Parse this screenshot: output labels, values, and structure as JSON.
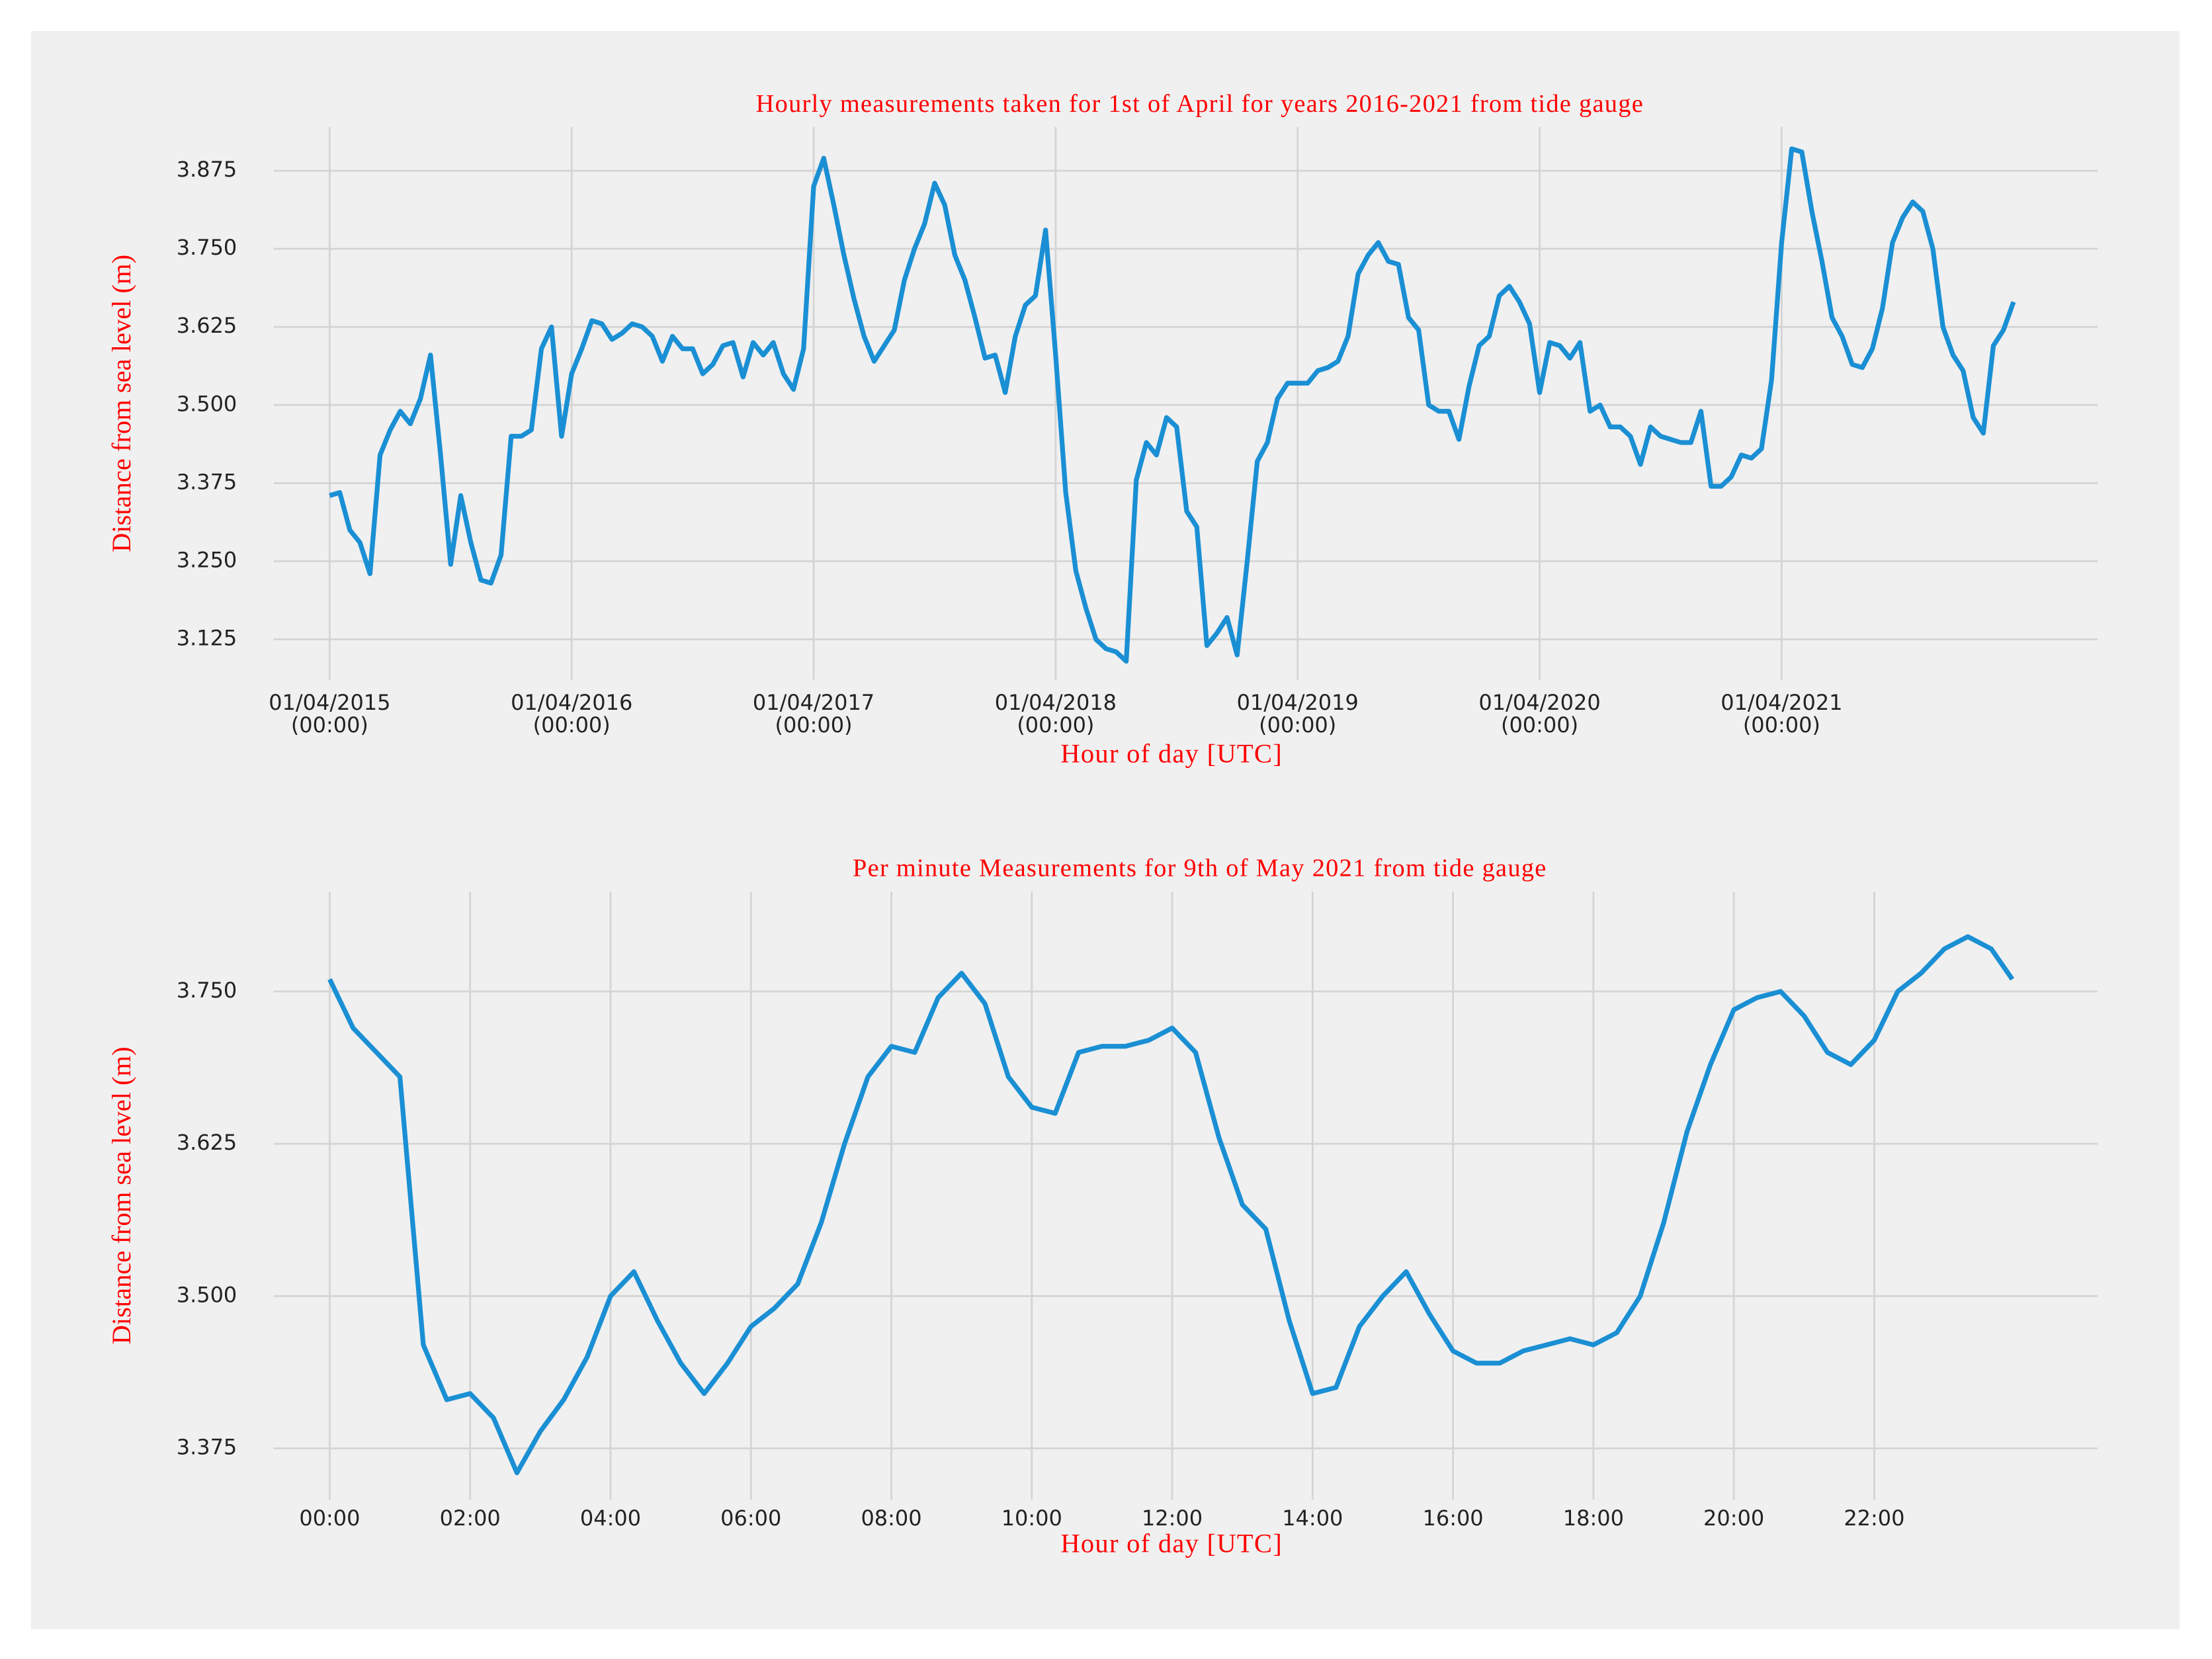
{
  "chart_data": [
    {
      "type": "line",
      "title": "Hourly measurements taken for 1st of April for years 2016-2021 from tide gauge",
      "xlabel": "Hour of day [UTC]",
      "ylabel": "Distance from sea level (m)",
      "color": "#1a8fd4",
      "grid": true,
      "xlim": [
        -8.35,
        175.35
      ],
      "ylim": [
        3.06,
        3.945
      ],
      "xticks": [
        {
          "value": 0,
          "label": "01/04/2015\n(00:00)"
        },
        {
          "value": 24,
          "label": "01/04/2016\n(00:00)"
        },
        {
          "value": 48,
          "label": "01/04/2017\n(00:00)"
        },
        {
          "value": 72,
          "label": "01/04/2018\n(00:00)"
        },
        {
          "value": 96,
          "label": "01/04/2019\n(00:00)"
        },
        {
          "value": 120,
          "label": "01/04/2020\n(00:00)"
        },
        {
          "value": 144,
          "label": "01/04/2021\n(00:00)"
        }
      ],
      "yticks": [
        3.125,
        {
          "value": 3.25,
          "label": "3.250"
        },
        3.375,
        {
          "value": 3.5,
          "label": "3.500"
        },
        3.625,
        {
          "value": 3.75,
          "label": "3.750"
        },
        3.875
      ],
      "x": [
        0,
        1,
        2,
        3,
        4,
        5,
        6,
        7,
        8,
        9,
        10,
        11,
        12,
        13,
        14,
        15,
        16,
        17,
        18,
        19,
        20,
        21,
        22,
        23,
        24,
        25,
        26,
        27,
        28,
        29,
        30,
        31,
        32,
        33,
        34,
        35,
        36,
        37,
        38,
        39,
        40,
        41,
        42,
        43,
        44,
        45,
        46,
        47,
        48,
        49,
        50,
        51,
        52,
        53,
        54,
        55,
        56,
        57,
        58,
        59,
        60,
        61,
        62,
        63,
        64,
        65,
        66,
        67,
        68,
        69,
        70,
        71,
        72,
        73,
        74,
        75,
        76,
        77,
        78,
        79,
        80,
        81,
        82,
        83,
        84,
        85,
        86,
        87,
        88,
        89,
        90,
        91,
        92,
        93,
        94,
        95,
        96,
        97,
        98,
        99,
        100,
        101,
        102,
        103,
        104,
        105,
        106,
        107,
        108,
        109,
        110,
        111,
        112,
        113,
        114,
        115,
        116,
        117,
        118,
        119,
        120,
        121,
        122,
        123,
        124,
        125,
        126,
        127,
        128,
        129,
        130,
        131,
        132,
        133,
        134,
        135,
        136,
        137,
        138,
        139,
        140,
        141,
        142,
        143,
        144,
        145,
        146,
        147,
        148,
        149,
        150,
        151,
        152,
        153,
        154,
        155,
        156,
        157,
        158,
        159,
        160,
        161,
        162,
        163,
        164,
        165,
        166,
        167
      ],
      "values": [
        3.355,
        3.36,
        3.3,
        3.28,
        3.23,
        3.42,
        3.46,
        3.49,
        3.47,
        3.51,
        3.58,
        3.42,
        3.245,
        3.355,
        3.28,
        3.22,
        3.215,
        3.26,
        3.45,
        3.45,
        3.46,
        3.59,
        3.625,
        3.45,
        3.55,
        3.59,
        3.635,
        3.63,
        3.605,
        3.615,
        3.63,
        3.625,
        3.61,
        3.57,
        3.61,
        3.59,
        3.59,
        3.55,
        3.565,
        3.595,
        3.6,
        3.545,
        3.6,
        3.58,
        3.6,
        3.55,
        3.525,
        3.59,
        3.85,
        3.895,
        3.82,
        3.74,
        3.67,
        3.61,
        3.57,
        3.595,
        3.62,
        3.7,
        3.75,
        3.79,
        3.855,
        3.82,
        3.74,
        3.7,
        3.64,
        3.575,
        3.58,
        3.52,
        3.61,
        3.66,
        3.675,
        3.78,
        3.58,
        3.36,
        3.235,
        3.175,
        3.125,
        3.11,
        3.105,
        3.09,
        3.38,
        3.44,
        3.42,
        3.48,
        3.465,
        3.33,
        3.305,
        3.115,
        3.135,
        3.16,
        3.1,
        3.25,
        3.41,
        3.44,
        3.51,
        3.535,
        3.535,
        3.535,
        3.555,
        3.56,
        3.57,
        3.61,
        3.71,
        3.74,
        3.76,
        3.73,
        3.725,
        3.64,
        3.62,
        3.5,
        3.49,
        3.49,
        3.445,
        3.53,
        3.595,
        3.61,
        3.675,
        3.69,
        3.665,
        3.63,
        3.52,
        3.6,
        3.595,
        3.575,
        3.6,
        3.49,
        3.5,
        3.465,
        3.465,
        3.45,
        3.405,
        3.465,
        3.45,
        3.445,
        3.44,
        3.44,
        3.49,
        3.37,
        3.37,
        3.385,
        3.42,
        3.415,
        3.43,
        3.54,
        3.76,
        3.91,
        3.905,
        3.81,
        3.73,
        3.64,
        3.61,
        3.565,
        3.56,
        3.59,
        3.655,
        3.76,
        3.8,
        3.825,
        3.81,
        3.75,
        3.625,
        3.58,
        3.555,
        3.48,
        3.455,
        3.595,
        3.62,
        3.665
      ]
    },
    {
      "type": "line",
      "title": "Per minute Measurements for 9th of May 2021 from tide gauge",
      "xlabel": "Hour of day [UTC]",
      "ylabel": "Distance from sea level (m)",
      "color": "#1a8fd4",
      "grid": true,
      "xlim": [
        -72,
        1511
      ],
      "ylim": [
        3.333,
        3.832
      ],
      "xticks": [
        {
          "value": 0,
          "label": "00:00"
        },
        {
          "value": 120,
          "label": "02:00"
        },
        {
          "value": 240,
          "label": "04:00"
        },
        {
          "value": 360,
          "label": "06:00"
        },
        {
          "value": 480,
          "label": "08:00"
        },
        {
          "value": 600,
          "label": "10:00"
        },
        {
          "value": 720,
          "label": "12:00"
        },
        {
          "value": 840,
          "label": "14:00"
        },
        {
          "value": 960,
          "label": "16:00"
        },
        {
          "value": 1080,
          "label": "18:00"
        },
        {
          "value": 1200,
          "label": "20:00"
        },
        {
          "value": 1320,
          "label": "22:00"
        }
      ],
      "yticks": [
        3.375,
        {
          "value": 3.5,
          "label": "3.500"
        },
        3.625,
        {
          "value": 3.75,
          "label": "3.750"
        }
      ],
      "x": [
        0,
        20,
        40,
        60,
        80,
        100,
        120,
        140,
        160,
        180,
        200,
        220,
        240,
        260,
        280,
        300,
        320,
        340,
        360,
        380,
        400,
        420,
        440,
        460,
        480,
        500,
        520,
        540,
        560,
        580,
        600,
        620,
        640,
        660,
        680,
        700,
        720,
        740,
        760,
        780,
        800,
        820,
        840,
        860,
        880,
        900,
        920,
        940,
        960,
        980,
        1000,
        1020,
        1040,
        1060,
        1080,
        1100,
        1120,
        1140,
        1160,
        1180,
        1200,
        1220,
        1240,
        1260,
        1280,
        1300,
        1320,
        1340,
        1360,
        1380,
        1400,
        1420,
        1438
      ],
      "values": [
        3.76,
        3.72,
        3.7,
        3.68,
        3.46,
        3.415,
        3.42,
        3.4,
        3.355,
        3.389,
        3.415,
        3.45,
        3.5,
        3.52,
        3.48,
        3.445,
        3.42,
        3.445,
        3.475,
        3.49,
        3.51,
        3.56,
        3.625,
        3.68,
        3.705,
        3.7,
        3.745,
        3.765,
        3.74,
        3.68,
        3.655,
        3.65,
        3.7,
        3.705,
        3.705,
        3.71,
        3.72,
        3.7,
        3.63,
        3.575,
        3.555,
        3.48,
        3.42,
        3.425,
        3.475,
        3.5,
        3.52,
        3.485,
        3.455,
        3.445,
        3.445,
        3.455,
        3.46,
        3.465,
        3.46,
        3.47,
        3.5,
        3.56,
        3.635,
        3.69,
        3.735,
        3.745,
        3.75,
        3.73,
        3.7,
        3.69,
        3.71,
        3.75,
        3.765,
        3.785,
        3.795,
        3.785,
        3.76
      ]
    }
  ]
}
